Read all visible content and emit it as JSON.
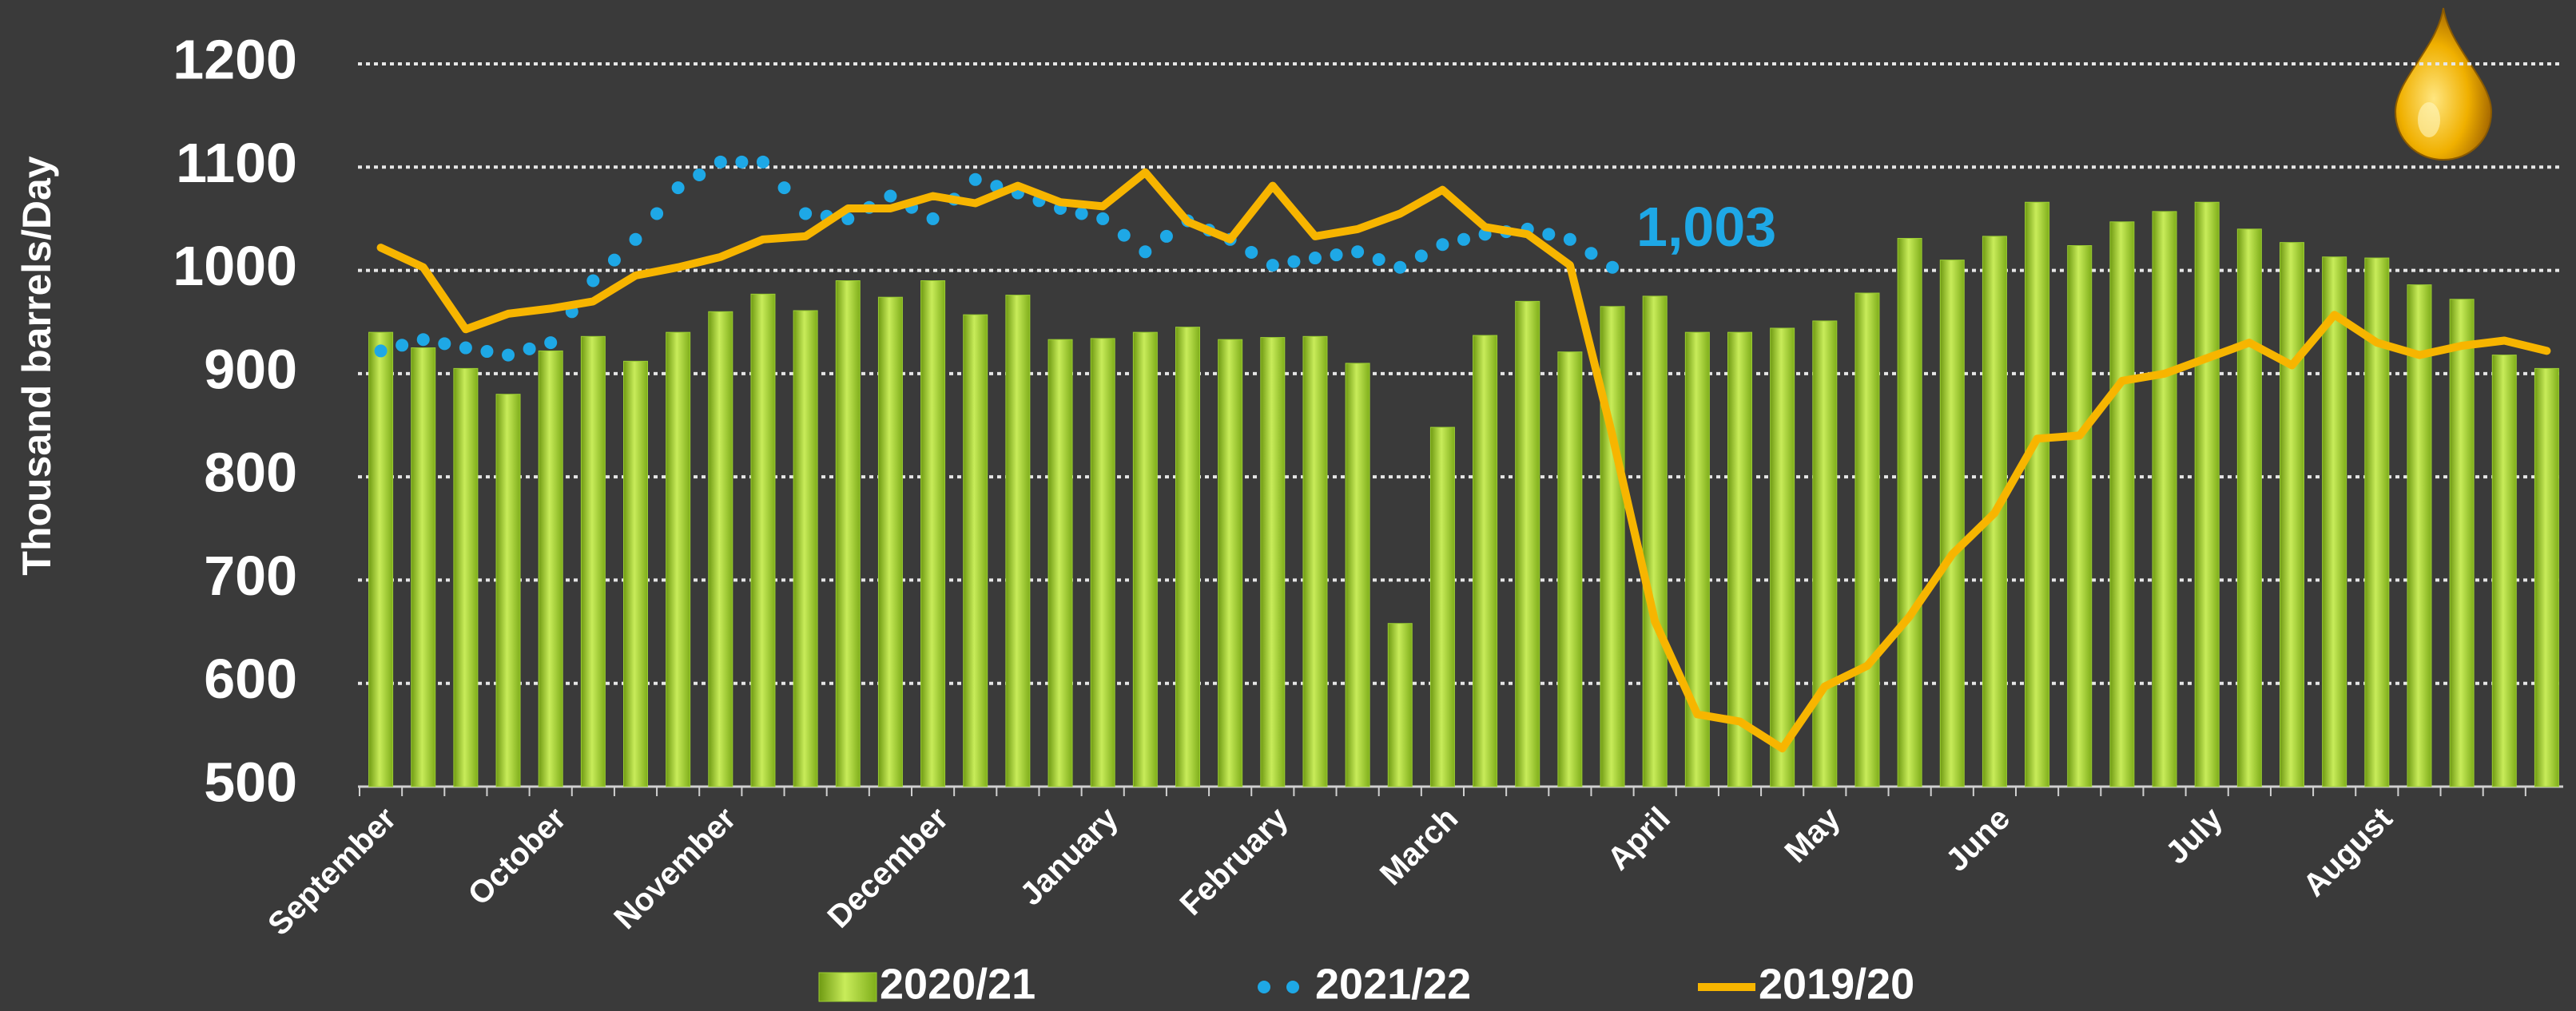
{
  "chart_data": {
    "type": "bar",
    "y_label": "Thousand barrels/Day",
    "categories": [
      "September",
      null,
      null,
      null,
      "October",
      null,
      null,
      null,
      "November",
      null,
      null,
      null,
      null,
      "December",
      null,
      null,
      null,
      "January",
      null,
      null,
      null,
      "February",
      null,
      null,
      null,
      "March",
      null,
      null,
      null,
      null,
      "April",
      null,
      null,
      null,
      "May",
      null,
      null,
      null,
      "June",
      null,
      null,
      null,
      null,
      "July",
      null,
      null,
      null,
      "August",
      null,
      null,
      null,
      null
    ],
    "series": [
      {
        "name": "2020/21",
        "type": "bar",
        "color": "#9acd32",
        "values": [
          940,
          925,
          905,
          880,
          922,
          936,
          912,
          940,
          960,
          977,
          961,
          990,
          974,
          990,
          957,
          976,
          933,
          934,
          940,
          945,
          933,
          935,
          936,
          910,
          658,
          848,
          937,
          970,
          921,
          965,
          975,
          940,
          940,
          944,
          951,
          978,
          1031,
          1010,
          1033,
          1066,
          1024,
          1047,
          1057,
          1066,
          1040,
          1027,
          1013,
          1012,
          986,
          972,
          918,
          905
        ]
      },
      {
        "name": "2021/22",
        "type": "line",
        "linestyle": "dotted",
        "color": "#1ea8e6",
        "values": [
          922,
          933,
          925,
          918,
          930,
          990,
          1030,
          1080,
          1105,
          1105,
          1055,
          1050,
          1072,
          1050,
          1088,
          1075,
          1060,
          1050,
          1018,
          1048,
          1030,
          1005,
          1012,
          1018,
          1003,
          1025,
          1035,
          1040,
          1030,
          1003,
          null,
          null,
          null,
          null,
          null,
          null,
          null,
          null,
          null,
          null,
          null,
          null,
          null,
          null,
          null,
          null,
          null,
          null,
          null,
          null,
          null,
          null
        ],
        "value_labels": [
          null,
          null,
          null,
          null,
          null,
          null,
          null,
          null,
          null,
          null,
          null,
          null,
          null,
          null,
          null,
          null,
          null,
          null,
          null,
          null,
          null,
          null,
          null,
          null,
          null,
          null,
          null,
          null,
          null,
          "1,003",
          null,
          null,
          null,
          null,
          null,
          null,
          null,
          null,
          null,
          null,
          null,
          null,
          null,
          null,
          null,
          null,
          null,
          null,
          null,
          null,
          null,
          null
        ]
      },
      {
        "name": "2019/20",
        "type": "line",
        "linestyle": "solid",
        "color": "#f7b500",
        "values": [
          1022,
          1003,
          943,
          958,
          963,
          970,
          995,
          1003,
          1013,
          1030,
          1033,
          1060,
          1060,
          1072,
          1065,
          1082,
          1066,
          1062,
          1095,
          1047,
          1030,
          1082,
          1033,
          1040,
          1055,
          1078,
          1042,
          1035,
          1005,
          840,
          660,
          570,
          563,
          537,
          597,
          617,
          665,
          725,
          765,
          837,
          840,
          893,
          900,
          915,
          930,
          908,
          957,
          930,
          918,
          927,
          932,
          922
        ]
      }
    ],
    "ylim": [
      500,
      1200
    ],
    "yticks": [
      500,
      600,
      700,
      800,
      900,
      1000,
      1100,
      1200
    ],
    "grid": true,
    "legend": "bottom"
  }
}
